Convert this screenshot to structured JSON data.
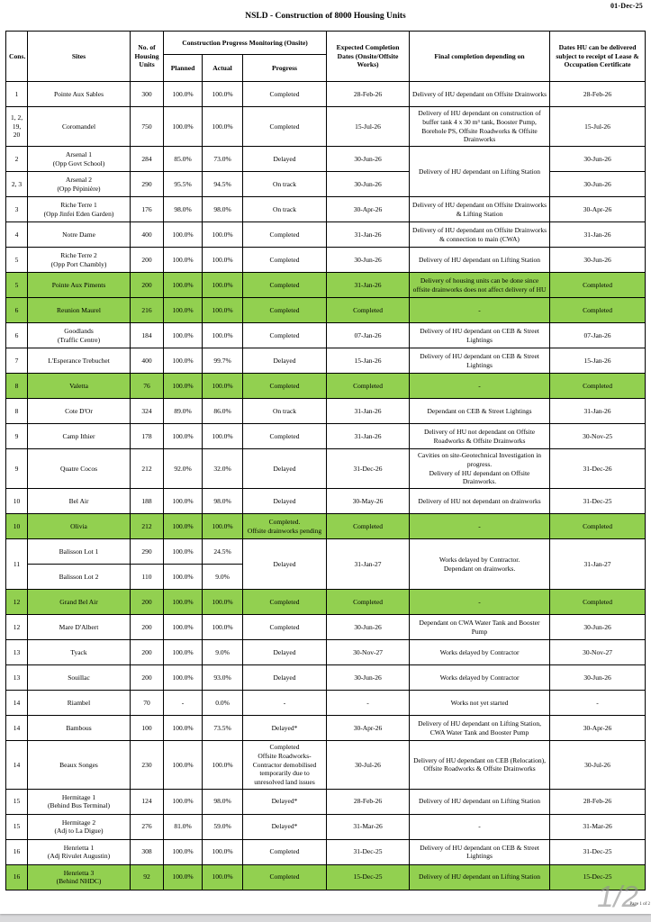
{
  "document": {
    "date": "01-Dec-25",
    "title": "NSLD - Construction of 8000 Housing Units",
    "page_indicator": "1/2",
    "page_label": "Page 1 of 2"
  },
  "colors": {
    "highlight_green": "#92d050"
  },
  "table": {
    "header": {
      "cons": "Cons.",
      "sites": "Sites",
      "units": "No. of Housing Units",
      "monitoring_group": "Construction Progress Monitoring (Onsite)",
      "planned": "Planned",
      "actual": "Actual",
      "progress": "Progress",
      "expected": "Expected Completion Dates (Onsite/Offsite Works)",
      "final": "Final completion depending on",
      "dates": "Dates HU can be delivered subject to receipt of Lease & Occupation Certificate"
    },
    "rows": [
      {
        "green": false,
        "cells": [
          "1",
          "Pointe Aux Sables",
          "300",
          "100.0%",
          "100.0%",
          "Completed",
          "28-Feb-26",
          "Delivery of HU dependant on Offsite Drainworks",
          "28-Feb-26"
        ]
      },
      {
        "green": false,
        "cells": [
          "1, 2, 19, 20",
          "Coromandel",
          "750",
          "100.0%",
          "100.0%",
          "Completed",
          "15-Jul-26",
          "Delivery of HU dependant on construction of buffer tank 4 x 30 m³ tank, Booster Pump, Borehole PS, Offsite Roadworks & Offsite Drainworks",
          "15-Jul-26"
        ]
      },
      {
        "green": false,
        "cells": [
          "2",
          "Arsenal 1\n(Opp Govt School)",
          "284",
          "85.0%",
          "73.0%",
          "Delayed",
          "30-Jun-26",
          {
            "t": "Delivery of HU dependant on Lifting Station",
            "rs": 2
          },
          "30-Jun-26"
        ]
      },
      {
        "green": false,
        "cells": [
          "2, 3",
          "Arsenal 2\n(Opp Pépinière)",
          "290",
          "95.5%",
          "94.5%",
          "On track",
          "30-Jun-26",
          "30-Jun-26"
        ]
      },
      {
        "green": false,
        "cells": [
          "3",
          "Riche Terre 1\n(Opp Jinfei Eden Garden)",
          "176",
          "98.0%",
          "98.0%",
          "On track",
          "30-Apr-26",
          "Delivery of HU dependant on Offsite Drainworks & Lifting Station",
          "30-Apr-26"
        ]
      },
      {
        "green": false,
        "cells": [
          "4",
          "Notre Dame",
          "400",
          "100.0%",
          "100.0%",
          "Completed",
          "31-Jan-26",
          "Delivery of HU dependant on Offsite Drainworks & connection to main (CWA)",
          "31-Jan-26"
        ]
      },
      {
        "green": false,
        "cells": [
          "5",
          "Riche Terre 2\n(Opp Port Chambly)",
          "200",
          "100.0%",
          "100.0%",
          "Completed",
          "30-Jun-26",
          "Delivery of HU dependant on Lifting Station",
          "30-Jun-26"
        ]
      },
      {
        "green": true,
        "cells": [
          "5",
          "Pointe Aux Piments",
          "200",
          "100.0%",
          "100.0%",
          "Completed",
          "31-Jan-26",
          "Delivery of housing units can be done since offsite drainworks does not affect delivery of HU",
          "Completed"
        ]
      },
      {
        "green": true,
        "cells": [
          "6",
          "Reunion Maurel",
          "216",
          "100.0%",
          "100.0%",
          "Completed",
          "Completed",
          "-",
          "Completed"
        ]
      },
      {
        "green": false,
        "cells": [
          "6",
          "Goodlands\n(Traffic Centre)",
          "184",
          "100.0%",
          "100.0%",
          "Completed",
          "07-Jan-26",
          "Delivery of HU dependant on CEB & Street Lightings",
          "07-Jan-26"
        ]
      },
      {
        "green": false,
        "cells": [
          "7",
          "L'Esperance Trebuchet",
          "400",
          "100.0%",
          "99.7%",
          "Delayed",
          "15-Jan-26",
          "Delivery of HU dependant on CEB & Street Lightings",
          "15-Jan-26"
        ]
      },
      {
        "green": true,
        "cells": [
          "8",
          "Valetta",
          "76",
          "100.0%",
          "100.0%",
          "Completed",
          "Completed",
          "-",
          "Completed"
        ]
      },
      {
        "green": false,
        "cells": [
          "8",
          "Cote D'Or",
          "324",
          "89.0%",
          "86.0%",
          "On track",
          "31-Jan-26",
          "Dependant on CEB & Street Lightings",
          "31-Jan-26"
        ]
      },
      {
        "green": false,
        "cells": [
          "9",
          "Camp Ithier",
          "178",
          "100.0%",
          "100.0%",
          "Completed",
          "31-Jan-26",
          "Delivery of HU not dependant on Offsite Roadworks & Offsite Drainworks",
          "30-Nov-25"
        ]
      },
      {
        "green": false,
        "cells": [
          "9",
          "Quatre Cocos",
          "212",
          "92.0%",
          "32.0%",
          "Delayed",
          "31-Dec-26",
          "Cavities on site-Geotechnical Investigation in progress.\nDelivery of HU dependant on Offsite Drainworks.",
          "31-Dec-26"
        ]
      },
      {
        "green": false,
        "cells": [
          "10",
          "Bel Air",
          "188",
          "100.0%",
          "98.0%",
          "Delayed",
          "30-May-26",
          "Delivery of HU not dependant on drainworks",
          "31-Dec-25"
        ]
      },
      {
        "green": true,
        "cells": [
          "10",
          "Olivia",
          "212",
          "100.0%",
          "100.0%",
          "Completed.\nOffsite drainworks pending",
          "Completed",
          "-",
          "Completed"
        ]
      },
      {
        "green": false,
        "cells": [
          {
            "t": "11",
            "rs": 2
          },
          "Balisson Lot 1",
          "290",
          "100.0%",
          "24.5%",
          {
            "t": "Delayed",
            "rs": 2
          },
          {
            "t": "31-Jan-27",
            "rs": 2
          },
          {
            "t": "Works delayed by Contractor.\nDependant on drainworks.",
            "rs": 2
          },
          {
            "t": "31-Jan-27",
            "rs": 2
          }
        ]
      },
      {
        "green": false,
        "cells": [
          "Balisson Lot 2",
          "110",
          "100.0%",
          "9.0%"
        ]
      },
      {
        "green": true,
        "cells": [
          "12",
          "Grand Bel Air",
          "200",
          "100.0%",
          "100.0%",
          "Completed",
          "Completed",
          "-",
          "Completed"
        ]
      },
      {
        "green": false,
        "cells": [
          "12",
          "Mare D'Albert",
          "200",
          "100.0%",
          "100.0%",
          "Completed",
          "30-Jun-26",
          "Dependant on CWA Water Tank and Booster Pump",
          "30-Jun-26"
        ]
      },
      {
        "green": false,
        "cells": [
          "13",
          "Tyack",
          "200",
          "100.0%",
          "9.0%",
          "Delayed",
          "30-Nov-27",
          "Works delayed by Contractor",
          "30-Nov-27"
        ]
      },
      {
        "green": false,
        "cells": [
          "13",
          "Souillac",
          "200",
          "100.0%",
          "93.0%",
          "Delayed",
          "30-Jun-26",
          "Works delayed by Contractor",
          "30-Jun-26"
        ]
      },
      {
        "green": false,
        "cells": [
          "14",
          "Riambel",
          "70",
          "-",
          "0.0%",
          "-",
          "-",
          "Works not yet started",
          "-"
        ]
      },
      {
        "green": false,
        "cells": [
          "14",
          "Bambous",
          "100",
          "100.0%",
          "73.5%",
          "Delayed*",
          "30-Apr-26",
          "Delivery of HU dependant on Lifting Station, CWA Water Tank and Booster Pump",
          "30-Apr-26"
        ]
      },
      {
        "green": false,
        "cells": [
          "14",
          "Beaux Songes",
          "230",
          "100.0%",
          "100.0%",
          "Completed\nOffsite Roadworks-\nContractor demobilised\ntemporarily due to\nunresolved land issues",
          "30-Jul-26",
          "Delivery of HU dependant on CEB (Relocation), Offsite Roadworks & Offsite Drainworks",
          "30-Jul-26"
        ]
      },
      {
        "green": false,
        "cells": [
          "15",
          "Hermitage 1\n(Behind Bus Terminal)",
          "124",
          "100.0%",
          "98.0%",
          "Delayed*",
          "28-Feb-26",
          "Delivery of HU dependant on Lifting Station",
          "28-Feb-26"
        ]
      },
      {
        "green": false,
        "cells": [
          "15",
          "Hermitage 2\n(Adj to La Digue)",
          "276",
          "81.0%",
          "59.0%",
          "Delayed*",
          "31-Mar-26",
          "-",
          "31-Mar-26"
        ]
      },
      {
        "green": false,
        "cells": [
          "16",
          "Henrietta 1\n(Adj Rivulet Augustin)",
          "308",
          "100.0%",
          "100.0%",
          "Completed",
          "31-Dec-25",
          "Delivery of HU dependant on CEB & Street Lightings",
          "31-Dec-25"
        ]
      },
      {
        "green": true,
        "cells": [
          "16",
          "Henrietta 3\n(Behind NHDC)",
          "92",
          "100.0%",
          "100.0%",
          "Completed",
          "15-Dec-25",
          "Delivery of HU dependant on Lifting Station",
          "15-Dec-25"
        ]
      }
    ]
  }
}
